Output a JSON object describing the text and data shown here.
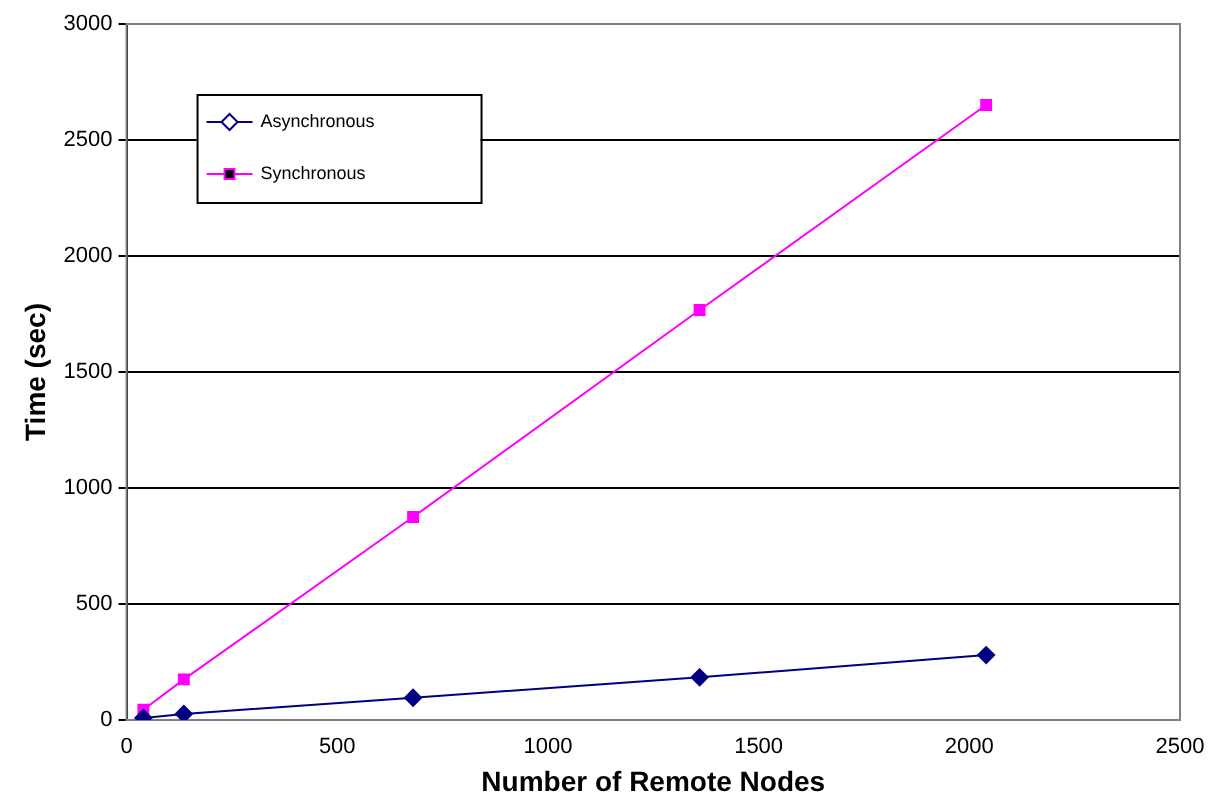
{
  "chart_data": {
    "type": "line",
    "xlabel": "Number of Remote Nodes",
    "ylabel": "Time (sec)",
    "x": [
      40,
      136,
      680,
      1360,
      2040
    ],
    "series": [
      {
        "name": "Asynchronous",
        "color": "#000080",
        "values": [
          9,
          26,
          96,
          184,
          280
        ],
        "marker": "diamond"
      },
      {
        "name": "Synchronous",
        "color": "#ff00ff",
        "values": [
          44,
          175,
          875,
          1767,
          2651
        ],
        "marker": "square"
      }
    ],
    "xlim": [
      0,
      2500
    ],
    "xticks": [
      0,
      500,
      1000,
      1500,
      2000,
      2500
    ],
    "ylim": [
      0,
      3000
    ],
    "yticks": [
      0,
      500,
      1000,
      1500,
      2000,
      2500,
      3000
    ],
    "grid": "y",
    "legend": "top left",
    "line_style": "solid"
  }
}
